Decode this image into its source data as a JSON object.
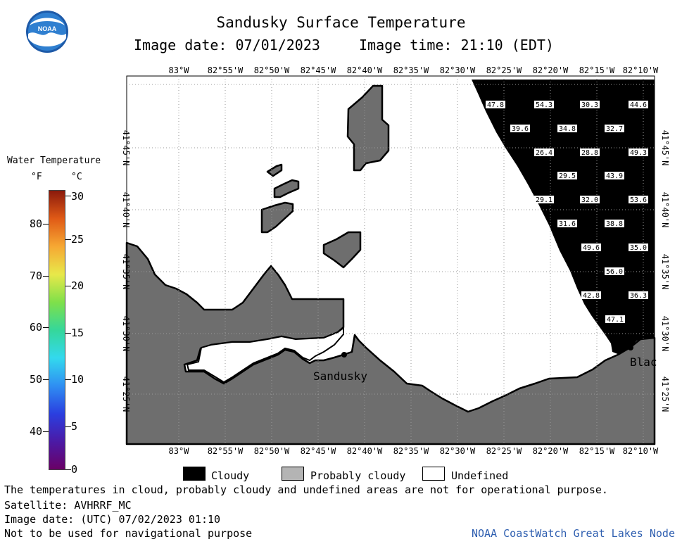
{
  "header": {
    "title": "Sandusky Surface Temperature",
    "image_date": "Image date: 07/01/2023",
    "image_time": "Image time: 21:10 (EDT)"
  },
  "legend": {
    "title": "Water Temperature",
    "unit_f": "°F",
    "unit_c": "°C",
    "f_ticks": [
      "80",
      "70",
      "60",
      "50",
      "40"
    ],
    "c_ticks": [
      "30",
      "25",
      "20",
      "15",
      "10",
      "5",
      "0"
    ]
  },
  "map": {
    "lon_labels": [
      "83°W",
      "82°55'W",
      "82°50'W",
      "82°45'W",
      "82°40'W",
      "82°35'W",
      "82°30'W",
      "82°25'W",
      "82°20'W",
      "82°15'W",
      "82°10'W"
    ],
    "lat_labels": [
      "41°45'N",
      "41°40'N",
      "41°35'N",
      "41°30'N",
      "41°25'N"
    ],
    "place_labels": {
      "sandusky": "Sandusky",
      "blac": "Blac"
    },
    "temps": [
      "47.8",
      "54.3",
      "30.3",
      "44.6",
      "39.6",
      "34.8",
      "32.7",
      "26.4",
      "28.8",
      "49.3",
      "29.5",
      "43.9",
      "29.1",
      "32.0",
      "53.6",
      "31.6",
      "38.8",
      "49.6",
      "35.0",
      "56.0",
      "42.8",
      "36.3",
      "47.1"
    ]
  },
  "key": {
    "cloudy": "Cloudy",
    "probably_cloudy": "Probably cloudy",
    "undefined": "Undefined"
  },
  "footer": {
    "line1": "The temperatures in cloud, probably cloudy and undefined areas are not for operational purpose.",
    "line2": "Satellite: AVHRRF_MC",
    "line3": "Image date: (UTC) 07/02/2023  01:10",
    "line4": "Not to be used for navigational purpose",
    "credit": "NOAA CoastWatch Great Lakes Node"
  },
  "colors": {
    "land": "#6e6e6e",
    "cloud": "#000000",
    "water": "#ffffff",
    "credit": "#2f5fb0"
  }
}
